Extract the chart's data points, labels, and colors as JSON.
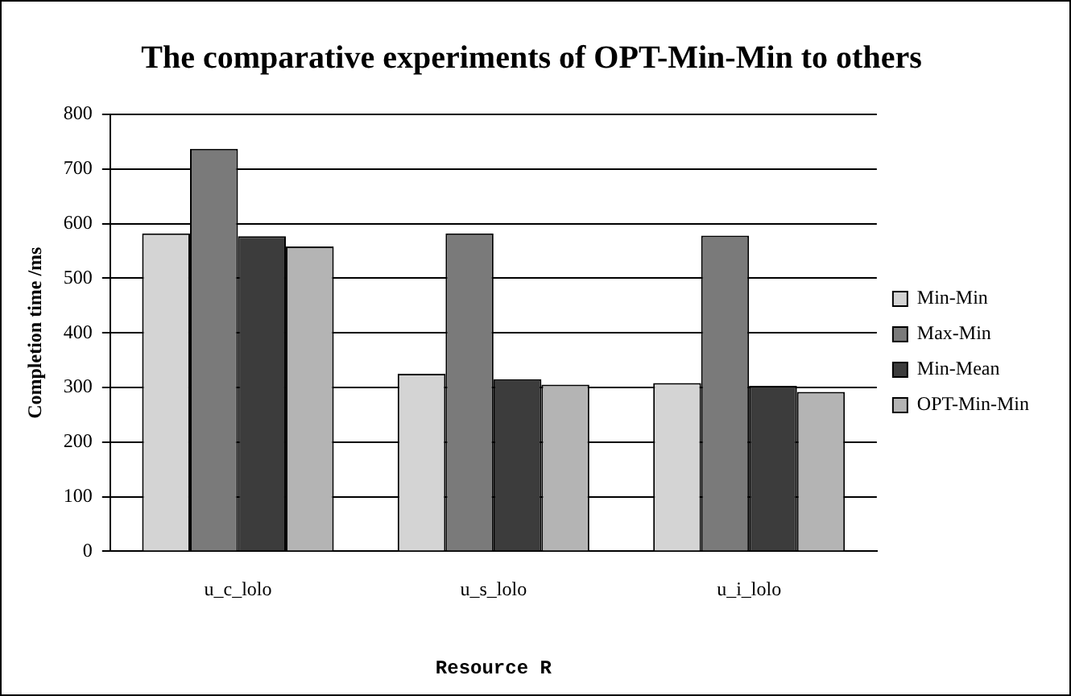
{
  "chart_data": {
    "type": "bar",
    "title": "The comparative experiments of OPT-Min-Min to others",
    "xlabel": "Resource R",
    "ylabel": "Completion time /ms",
    "categories": [
      "u_c_lolo",
      "u_s_lolo",
      "u_i_lolo"
    ],
    "series": [
      {
        "name": "Min-Min",
        "color": "#d4d4d4",
        "values": [
          582,
          325,
          308
        ]
      },
      {
        "name": "Max-Min",
        "color": "#7a7a7a",
        "values": [
          737,
          582,
          578
        ]
      },
      {
        "name": "Min-Mean",
        "color": "#3c3c3c",
        "values": [
          577,
          315,
          303
        ]
      },
      {
        "name": "OPT-Min-Min",
        "color": "#b4b4b4",
        "values": [
          558,
          305,
          292
        ]
      }
    ],
    "ylim": [
      0,
      800
    ],
    "yticks": [
      0,
      100,
      200,
      300,
      400,
      500,
      600,
      700,
      800
    ],
    "grid": "y",
    "legend": "right"
  }
}
